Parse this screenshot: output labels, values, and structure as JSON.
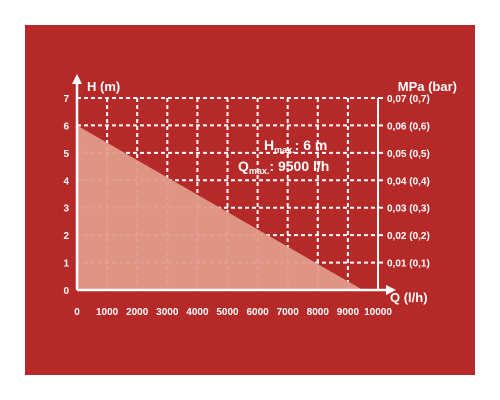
{
  "colors": {
    "background": "#b52a28",
    "grid": "#ffffff",
    "fill": "#e29a8a",
    "text": "#ffffff"
  },
  "chart_data": {
    "type": "area",
    "title": "",
    "xlabel": "Q (l/h)",
    "ylabel": "H (m)",
    "y2label": "MPa (bar)",
    "xlim": [
      0,
      10000
    ],
    "ylim": [
      0,
      7
    ],
    "grid": true,
    "x_ticks": [
      "0",
      "1000",
      "2000",
      "3000",
      "4000",
      "5000",
      "6000",
      "7000",
      "8000",
      "9000",
      "10000"
    ],
    "y_ticks": [
      "0",
      "1",
      "2",
      "3",
      "4",
      "5",
      "6",
      "7"
    ],
    "y2_ticks": [
      "0,01 (0,1)",
      "0,02 (0,2)",
      "0,03 (0,3)",
      "0,04 (0,4)",
      "0,05 (0,5)",
      "0,06 (0,6)",
      "0,07 (0,7)"
    ],
    "series": [
      {
        "x": [
          0,
          9500
        ],
        "y": [
          6,
          0
        ]
      }
    ],
    "annotations": {
      "hmax_prefix": "H",
      "hmax_sub": "max.",
      "hmax_value": ": 6 m",
      "qmax_prefix": "Q",
      "qmax_sub": "max.",
      "qmax_value": ": 9500 l/h"
    }
  }
}
